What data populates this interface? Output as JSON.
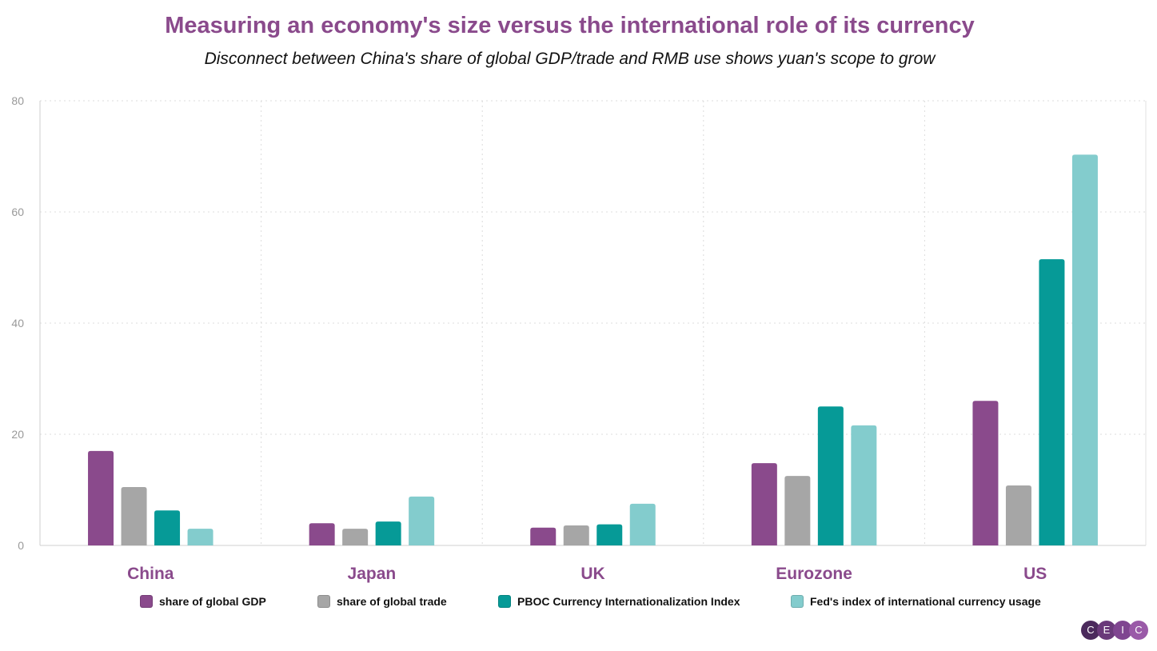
{
  "title": "Measuring an economy's size versus the international role of its currency",
  "subtitle": "Disconnect between China's share of global GDP/trade and RMB use shows yuan's scope to grow",
  "colors": {
    "title": "#8a4a8c",
    "grid": "#dcdcdc",
    "axis_text": "#999999",
    "category_text": "#8a4a8c"
  },
  "chart_data": {
    "type": "bar",
    "categories": [
      "China",
      "Japan",
      "UK",
      "Eurozone",
      "US"
    ],
    "series": [
      {
        "name": "share of global GDP",
        "color": "#8a4a8c",
        "values": [
          17.0,
          4.0,
          3.2,
          14.8,
          26.0
        ]
      },
      {
        "name": "share of global trade",
        "color": "#a6a6a6",
        "values": [
          10.5,
          3.0,
          3.6,
          12.5,
          10.8
        ]
      },
      {
        "name": "PBOC Currency Internationalization Index",
        "color": "#069a97",
        "values": [
          6.3,
          4.3,
          3.8,
          25.0,
          51.5
        ]
      },
      {
        "name": "Fed's index of international currency usage",
        "color": "#83cccd",
        "values": [
          3.0,
          8.8,
          7.5,
          21.6,
          70.3
        ]
      }
    ],
    "ylim": [
      0,
      80
    ],
    "yticks": [
      0,
      20,
      40,
      60,
      80
    ],
    "xlabel": "",
    "ylabel": "",
    "grid": true,
    "legend_position": "bottom"
  },
  "logo": {
    "letters": [
      "C",
      "E",
      "I",
      "C"
    ],
    "colors": [
      "#4b2a5c",
      "#6a3a7a",
      "#7f4590",
      "#9a5aa8"
    ]
  }
}
